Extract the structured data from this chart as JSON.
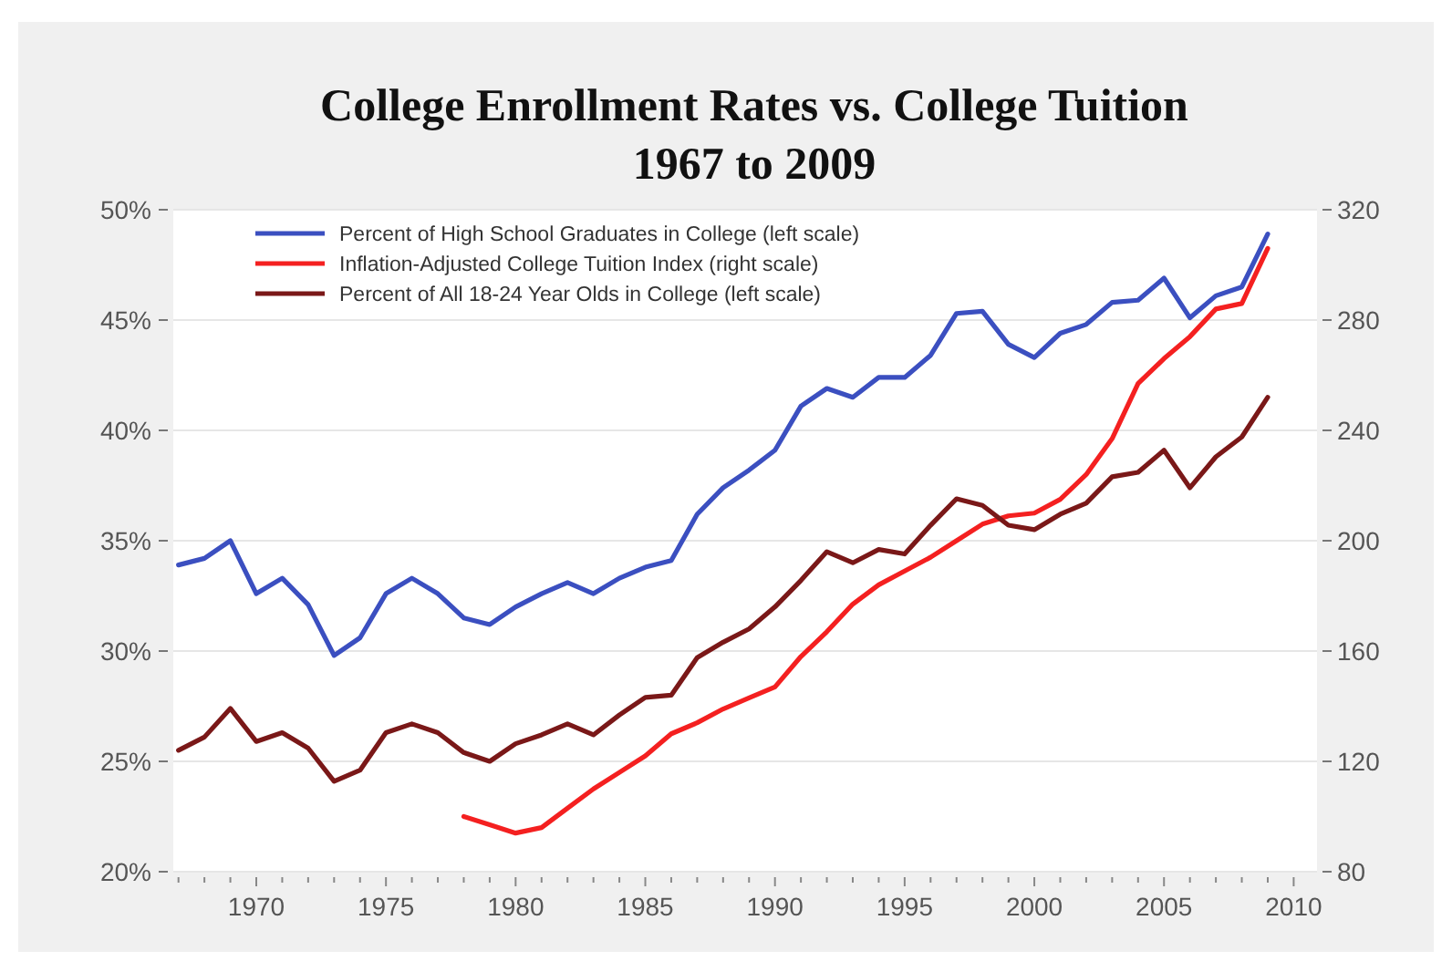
{
  "chart_data": {
    "type": "line",
    "title": "College Enrollment Rates vs. College Tuition\n1967 to 2009",
    "x": [
      1967,
      1968,
      1969,
      1970,
      1971,
      1972,
      1973,
      1974,
      1975,
      1976,
      1977,
      1978,
      1979,
      1980,
      1981,
      1982,
      1983,
      1984,
      1985,
      1986,
      1987,
      1988,
      1989,
      1990,
      1991,
      1992,
      1993,
      1994,
      1995,
      1996,
      1997,
      1998,
      1999,
      2000,
      2001,
      2002,
      2003,
      2004,
      2005,
      2006,
      2007,
      2008,
      2009
    ],
    "series": [
      {
        "name": "Percent of High School Graduates in College (left scale)",
        "color": "#3b4fc0",
        "values": [
          33.9,
          34.2,
          35.0,
          32.6,
          33.3,
          32.1,
          29.8,
          30.6,
          32.6,
          33.3,
          32.6,
          31.5,
          31.2,
          32.0,
          32.6,
          33.1,
          32.6,
          33.3,
          33.8,
          34.1,
          36.2,
          37.4,
          38.2,
          39.1,
          41.1,
          41.9,
          41.5,
          42.4,
          42.4,
          43.4,
          45.3,
          45.4,
          43.9,
          43.3,
          44.4,
          44.8,
          45.8,
          45.9,
          46.9,
          45.1,
          46.1,
          46.5,
          48.9
        ]
      },
      {
        "name": "Inflation-Adjusted College Tuition Index (right scale)",
        "color": "#f42020",
        "axis": "y2",
        "values": [
          null,
          null,
          null,
          null,
          null,
          null,
          null,
          null,
          null,
          null,
          null,
          100,
          97,
          94,
          96,
          103,
          110,
          116,
          122,
          130,
          134,
          139,
          143,
          147,
          158,
          167,
          177,
          184,
          189,
          194,
          200,
          206,
          209,
          210,
          215,
          224,
          237,
          257,
          266,
          274,
          284,
          286,
          306
        ]
      },
      {
        "name": "Percent of All 18-24 Year Olds in College (left scale)",
        "color": "#7a1818",
        "values": [
          25.5,
          26.1,
          27.4,
          25.9,
          26.3,
          25.6,
          24.1,
          24.6,
          26.3,
          26.7,
          26.3,
          25.4,
          25.0,
          25.8,
          26.2,
          26.7,
          26.2,
          27.1,
          27.9,
          28.0,
          29.7,
          30.4,
          31.0,
          32.0,
          33.2,
          34.5,
          34.0,
          34.6,
          34.4,
          35.7,
          36.9,
          36.6,
          35.7,
          35.5,
          36.2,
          36.7,
          37.9,
          38.1,
          39.1,
          37.4,
          38.8,
          39.7,
          41.5
        ]
      }
    ],
    "xlim": [
      1966.8,
      2010.9
    ],
    "xticks": [
      {
        "value": 1967,
        "label": null
      },
      {
        "value": 1968,
        "label": null
      },
      {
        "value": 1969,
        "label": null
      },
      1970,
      {
        "value": 1971,
        "label": null
      },
      {
        "value": 1972,
        "label": null
      },
      {
        "value": 1973,
        "label": null
      },
      {
        "value": 1974,
        "label": null
      },
      1975,
      {
        "value": 1976,
        "label": null
      },
      {
        "value": 1977,
        "label": null
      },
      {
        "value": 1978,
        "label": null
      },
      {
        "value": 1979,
        "label": null
      },
      1980,
      {
        "value": 1981,
        "label": null
      },
      {
        "value": 1982,
        "label": null
      },
      {
        "value": 1983,
        "label": null
      },
      {
        "value": 1984,
        "label": null
      },
      1985,
      {
        "value": 1986,
        "label": null
      },
      {
        "value": 1987,
        "label": null
      },
      {
        "value": 1988,
        "label": null
      },
      {
        "value": 1989,
        "label": null
      },
      1990,
      {
        "value": 1991,
        "label": null
      },
      {
        "value": 1992,
        "label": null
      },
      {
        "value": 1993,
        "label": null
      },
      {
        "value": 1994,
        "label": null
      },
      1995,
      {
        "value": 1996,
        "label": null
      },
      {
        "value": 1997,
        "label": null
      },
      {
        "value": 1998,
        "label": null
      },
      {
        "value": 1999,
        "label": null
      },
      2000,
      {
        "value": 2001,
        "label": null
      },
      {
        "value": 2002,
        "label": null
      },
      {
        "value": 2003,
        "label": null
      },
      {
        "value": 2004,
        "label": null
      },
      2005,
      {
        "value": 2006,
        "label": null
      },
      {
        "value": 2007,
        "label": null
      },
      {
        "value": 2008,
        "label": null
      },
      {
        "value": 2009,
        "label": null
      },
      2010
    ],
    "ylim": [
      20,
      50
    ],
    "yticks": [
      {
        "value": 20,
        "label": "20%"
      },
      {
        "value": 25,
        "label": "25%"
      },
      {
        "value": 30,
        "label": "30%"
      },
      {
        "value": 35,
        "label": "35%"
      },
      {
        "value": 40,
        "label": "40%"
      },
      {
        "value": 45,
        "label": "45%"
      },
      {
        "value": 50,
        "label": "50%"
      }
    ],
    "y2lim": [
      80,
      320
    ],
    "y2ticks": [
      80,
      120,
      160,
      200,
      240,
      280,
      320
    ],
    "grid": "y",
    "legend": "top left",
    "marker": "none",
    "line_style": "solid"
  }
}
